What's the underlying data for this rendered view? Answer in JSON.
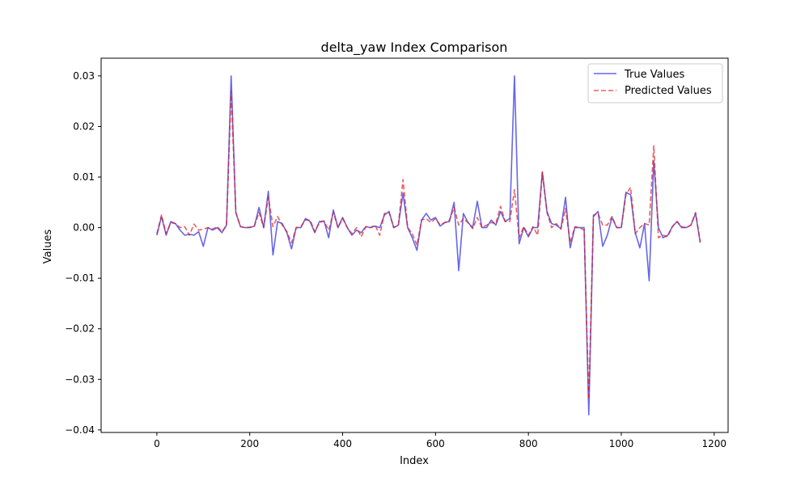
{
  "chart_data": {
    "type": "line",
    "title": "delta_yaw Index Comparison",
    "xlabel": "Index",
    "ylabel": "Values",
    "xlim": [
      -120,
      1230
    ],
    "ylim": [
      -0.0405,
      0.0335
    ],
    "xticks": [
      0,
      200,
      400,
      600,
      800,
      1000,
      1200
    ],
    "xtick_labels": [
      "0",
      "200",
      "400",
      "600",
      "800",
      "1000",
      "1200"
    ],
    "yticks": [
      -0.04,
      -0.03,
      -0.02,
      -0.01,
      0.0,
      0.01,
      0.02,
      0.03
    ],
    "ytick_labels": [
      "−0.04",
      "−0.03",
      "−0.02",
      "−0.01",
      "0.00",
      "0.01",
      "0.02",
      "0.03"
    ],
    "grid": false,
    "legend_position": "top-right",
    "x": [
      0,
      10,
      20,
      30,
      40,
      50,
      60,
      70,
      80,
      90,
      100,
      110,
      120,
      130,
      140,
      150,
      160,
      170,
      180,
      190,
      200,
      210,
      220,
      230,
      240,
      250,
      260,
      270,
      280,
      290,
      300,
      310,
      320,
      330,
      340,
      350,
      360,
      370,
      380,
      390,
      400,
      410,
      420,
      430,
      440,
      450,
      460,
      470,
      480,
      490,
      500,
      510,
      520,
      530,
      540,
      550,
      560,
      570,
      580,
      590,
      600,
      610,
      620,
      630,
      640,
      650,
      660,
      670,
      680,
      690,
      700,
      710,
      720,
      730,
      740,
      750,
      760,
      770,
      780,
      790,
      800,
      810,
      820,
      830,
      840,
      850,
      860,
      870,
      880,
      890,
      900,
      910,
      920,
      930,
      940,
      950,
      960,
      970,
      980,
      990,
      1000,
      1010,
      1020,
      1030,
      1040,
      1050,
      1060,
      1070,
      1080,
      1090,
      1100,
      1110,
      1120,
      1130,
      1140,
      1150,
      1160,
      1170
    ],
    "series": [
      {
        "name": "True Values",
        "color": "#0000dd",
        "style": "solid",
        "values": [
          -0.0015,
          0.0022,
          -0.0015,
          0.0012,
          0.0008,
          -0.0005,
          -0.0015,
          -0.0013,
          -0.0015,
          -0.0008,
          -0.0037,
          0.0,
          -0.0005,
          0.0,
          -0.001,
          0.0005,
          0.03,
          0.003,
          0.0002,
          0.0,
          0.0,
          0.0003,
          0.004,
          0.0,
          0.0072,
          -0.0054,
          0.0012,
          0.0008,
          -0.001,
          -0.0042,
          0.0,
          0.0,
          0.0018,
          0.0012,
          -0.001,
          0.0012,
          0.0013,
          -0.002,
          0.0035,
          0.0,
          0.002,
          0.0,
          -0.0015,
          -0.0005,
          -0.001,
          0.0002,
          0.0,
          0.0003,
          0.0,
          0.0025,
          0.0032,
          0.0,
          0.0005,
          0.0068,
          0.0,
          -0.002,
          -0.0045,
          0.0015,
          0.0028,
          0.0015,
          0.002,
          0.0003,
          0.001,
          0.0012,
          0.005,
          -0.0085,
          0.0028,
          0.001,
          0.0,
          0.0052,
          0.0,
          0.0,
          0.0015,
          0.0005,
          0.0032,
          0.0012,
          0.0018,
          0.03,
          -0.0032,
          0.0,
          -0.0018,
          0.0,
          0.0,
          0.011,
          0.0032,
          0.0008,
          0.0005,
          -0.0002,
          0.006,
          -0.004,
          0.0,
          0.0,
          0.0,
          -0.037,
          0.0022,
          0.0032,
          -0.0037,
          -0.0015,
          0.002,
          0.0,
          0.0,
          0.007,
          0.0065,
          -0.001,
          -0.004,
          0.0008,
          -0.0105,
          0.0132,
          0.0,
          -0.002,
          -0.0015,
          0.0002,
          0.0012,
          0.0,
          0.0,
          0.0005,
          0.0028,
          -0.003
        ]
      },
      {
        "name": "Predicted Values",
        "color": "#e31a1c",
        "style": "dashed",
        "values": [
          -0.0012,
          0.0025,
          -0.0012,
          0.001,
          0.0008,
          0.0,
          0.0002,
          -0.0015,
          0.0007,
          -0.0005,
          -0.0003,
          0.0,
          -0.0003,
          0.0002,
          -0.0008,
          0.0004,
          0.027,
          0.003,
          0.0002,
          0.0,
          0.0001,
          0.0003,
          0.003,
          0.0,
          0.006,
          0.0002,
          0.0022,
          0.0005,
          -0.0008,
          -0.003,
          0.0,
          0.0002,
          0.0015,
          0.0015,
          -0.0008,
          0.001,
          0.0013,
          -0.0005,
          0.003,
          0.0,
          0.0018,
          0.0,
          -0.0012,
          0.0,
          -0.0018,
          0.0002,
          0.0,
          0.0005,
          -0.0015,
          0.0028,
          0.003,
          0.0,
          0.0005,
          0.0095,
          0.0,
          -0.0012,
          -0.0035,
          0.0015,
          0.0018,
          0.001,
          0.0018,
          0.0005,
          0.001,
          0.0015,
          0.004,
          0.0005,
          0.0018,
          0.001,
          -0.0002,
          0.002,
          0.0,
          0.0005,
          0.001,
          0.0008,
          0.0042,
          0.0012,
          0.0012,
          0.0075,
          -0.002,
          0.0002,
          -0.0015,
          0.0002,
          -0.0015,
          0.011,
          0.003,
          0.0,
          0.0008,
          -0.0003,
          0.0038,
          -0.003,
          0.0002,
          0.0,
          -0.0005,
          -0.034,
          0.0025,
          0.0028,
          0.0005,
          0.0005,
          0.0022,
          0.0,
          0.0,
          0.0065,
          0.008,
          -0.0012,
          0.0,
          0.0008,
          0.0005,
          0.0162,
          -0.002,
          -0.0015,
          -0.0018,
          0.0002,
          0.0012,
          0.0002,
          0.0,
          0.0005,
          0.003,
          -0.0028
        ]
      }
    ]
  }
}
